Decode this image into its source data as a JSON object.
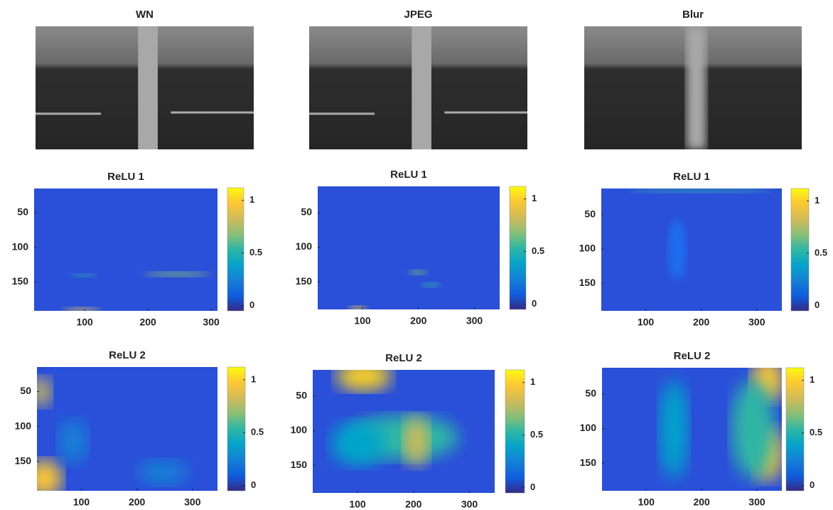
{
  "chart_data": [
    {
      "type": "image",
      "title": "WN"
    },
    {
      "type": "image",
      "title": "JPEG"
    },
    {
      "type": "image",
      "title": "Blur"
    },
    {
      "type": "heatmap",
      "title": "ReLU 1",
      "xlim": [
        20,
        310
      ],
      "ylim": [
        15,
        192
      ],
      "xticks": [
        100,
        200,
        300
      ],
      "yticks": [
        50,
        100,
        150
      ],
      "clim": [
        -0.05,
        1.12
      ],
      "cticks": [
        0,
        0.5,
        1
      ]
    },
    {
      "type": "heatmap",
      "title": "ReLU 1",
      "xlim": [
        20,
        345
      ],
      "ylim": [
        12,
        190
      ],
      "xticks": [
        100,
        200,
        300
      ],
      "yticks": [
        50,
        100,
        150
      ],
      "clim": [
        -0.05,
        1.12
      ],
      "cticks": [
        0,
        0.5,
        1
      ]
    },
    {
      "type": "heatmap",
      "title": "ReLU 1",
      "xlim": [
        20,
        345
      ],
      "ylim": [
        12,
        190
      ],
      "xticks": [
        100,
        200,
        300
      ],
      "yticks": [
        50,
        100,
        150
      ],
      "clim": [
        -0.05,
        1.12
      ],
      "cticks": [
        0,
        0.5,
        1
      ]
    },
    {
      "type": "heatmap",
      "title": "ReLU 2",
      "xlim": [
        20,
        345
      ],
      "ylim": [
        15,
        192
      ],
      "xticks": [
        100,
        200,
        300
      ],
      "yticks": [
        50,
        100,
        150
      ],
      "clim": [
        -0.05,
        1.12
      ],
      "cticks": [
        0,
        0.5,
        1
      ]
    },
    {
      "type": "heatmap",
      "title": "ReLU 2",
      "xlim": [
        20,
        345
      ],
      "ylim": [
        12,
        190
      ],
      "xticks": [
        100,
        200,
        300
      ],
      "yticks": [
        50,
        100,
        150
      ],
      "clim": [
        -0.05,
        1.12
      ],
      "cticks": [
        0,
        0.5,
        1
      ]
    },
    {
      "type": "heatmap",
      "title": "ReLU 2",
      "xlim": [
        20,
        345
      ],
      "ylim": [
        12,
        190
      ],
      "xticks": [
        100,
        200,
        300
      ],
      "yticks": [
        50,
        100,
        150
      ],
      "clim": [
        -0.05,
        1.12
      ],
      "cticks": [
        0,
        0.5,
        1
      ]
    }
  ]
}
